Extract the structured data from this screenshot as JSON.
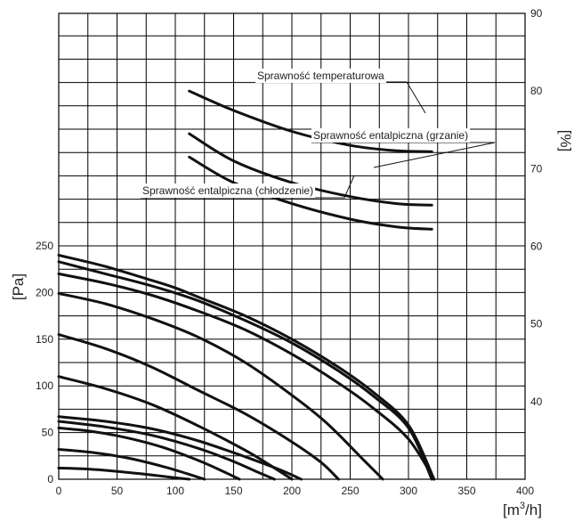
{
  "chart_data": {
    "type": "line",
    "xlabel_base": "[m",
    "xlabel_sup": "3",
    "xlabel_tail": "/h]",
    "ylabel_left": "[Pa]",
    "ylabel_right": "[%]",
    "xlim": [
      0,
      400
    ],
    "ylim_left": [
      0,
      250
    ],
    "ylim_right": [
      30,
      90
    ],
    "x_ticks": [
      0,
      50,
      100,
      150,
      200,
      250,
      300,
      350,
      400
    ],
    "y_ticks_left": [
      0,
      50,
      100,
      150,
      200,
      250
    ],
    "y_ticks_right": [
      40,
      50,
      60,
      70,
      80,
      90
    ],
    "grid": true,
    "pressure_curves": [
      {
        "x": [
          0,
          20,
          40,
          60,
          80,
          100,
          112
        ],
        "y": [
          12,
          11.2,
          9.5,
          7.2,
          4.6,
          1.5,
          0
        ]
      },
      {
        "x": [
          0,
          30,
          60,
          90,
          110,
          125
        ],
        "y": [
          32,
          28.5,
          22.5,
          13.5,
          6,
          0
        ]
      },
      {
        "x": [
          0,
          30,
          60,
          90,
          120,
          140,
          155
        ],
        "y": [
          55,
          51,
          44,
          34,
          20,
          9,
          0
        ]
      },
      {
        "x": [
          0,
          40,
          80,
          120,
          150,
          170,
          185
        ],
        "y": [
          62,
          56,
          47,
          33,
          19,
          8,
          0
        ]
      },
      {
        "x": [
          0,
          40,
          80,
          120,
          160,
          190,
          208
        ],
        "y": [
          67,
          62,
          54,
          41,
          24,
          10,
          0
        ]
      },
      {
        "x": [
          0,
          40,
          80,
          120,
          160,
          180,
          200
        ],
        "y": [
          110,
          97,
          80,
          57,
          31,
          16,
          0
        ]
      },
      {
        "x": [
          0,
          40,
          80,
          120,
          160,
          200,
          225,
          240
        ],
        "y": [
          155,
          140,
          120,
          95,
          70,
          40,
          18,
          0
        ]
      },
      {
        "x": [
          0,
          40,
          80,
          120,
          160,
          200,
          230,
          262,
          278
        ],
        "y": [
          199,
          188,
          172,
          152,
          125,
          90,
          60,
          20,
          0
        ]
      },
      {
        "x": [
          0,
          40,
          80,
          120,
          160,
          200,
          240,
          270,
          300,
          322
        ],
        "y": [
          220,
          210,
          197,
          180,
          160,
          134,
          103,
          76,
          43,
          0
        ]
      },
      {
        "x": [
          0,
          40,
          80,
          120,
          160,
          200,
          240,
          270,
          300,
          320
        ],
        "y": [
          233,
          220,
          207,
          191,
          170,
          146,
          116,
          89,
          55,
          0
        ]
      },
      {
        "x": [
          0,
          40,
          80,
          100,
          120,
          160,
          200,
          240,
          270,
          300,
          322
        ],
        "y": [
          240,
          228,
          213,
          205,
          195,
          175,
          150,
          120,
          93,
          58,
          0
        ]
      }
    ],
    "efficiency_curves": [
      {
        "name": "Sprawność temperaturowa",
        "x": [
          112,
          150,
          200,
          250,
          290,
          320
        ],
        "y": [
          80,
          77.5,
          74.8,
          73,
          72.3,
          72.2
        ]
      },
      {
        "name": "Sprawność entalpiczna (grzanie)",
        "x": [
          112,
          150,
          200,
          250,
          290,
          320
        ],
        "y": [
          74.5,
          71,
          68.2,
          66.4,
          65.5,
          65.3
        ]
      },
      {
        "name": "Sprawność entalpiczna (chłodzenie)",
        "x": [
          112,
          150,
          200,
          250,
          290,
          320
        ],
        "y": [
          71.5,
          68.2,
          65.5,
          63.5,
          62.5,
          62.2
        ]
      }
    ]
  }
}
